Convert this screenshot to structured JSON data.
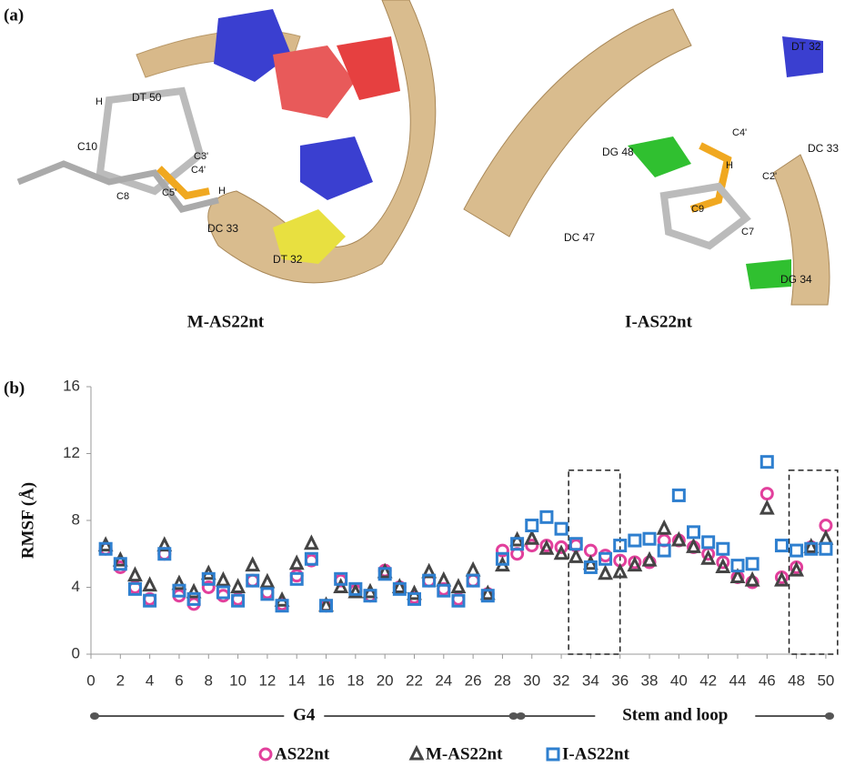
{
  "panel_a": {
    "label": "(a)",
    "images": [
      {
        "caption": "M-AS22nt",
        "labels": [
          "DT 50",
          "H",
          "C10",
          "C8",
          "C3'",
          "C4'",
          "C5'",
          "H",
          "DC 33",
          "DT 32"
        ]
      },
      {
        "caption": "I-AS22nt",
        "labels": [
          "DT 32",
          "C4'",
          "DC 33",
          "DG 48",
          "C2'",
          "DC 47",
          "C9",
          "C7",
          "DG 34",
          "H"
        ]
      }
    ]
  },
  "chart_data": {
    "type": "scatter",
    "label": "(b)",
    "y_label": "RMSF (Å)",
    "x": [
      1,
      2,
      3,
      4,
      5,
      6,
      7,
      8,
      9,
      10,
      11,
      12,
      13,
      14,
      15,
      16,
      17,
      18,
      19,
      20,
      21,
      22,
      23,
      24,
      25,
      26,
      27,
      28,
      29,
      30,
      31,
      32,
      33,
      34,
      35,
      36,
      37,
      38,
      39,
      40,
      41,
      42,
      43,
      44,
      45,
      46,
      47,
      48,
      49,
      50
    ],
    "series": [
      {
        "name": "AS22nt",
        "color": "#e2409c",
        "marker": "circle",
        "values": [
          6.3,
          5.2,
          4.0,
          3.3,
          6.0,
          3.5,
          3.0,
          4.0,
          3.5,
          3.3,
          4.4,
          3.7,
          3.0,
          4.7,
          5.6,
          2.9,
          4.4,
          3.8,
          3.5,
          5.0,
          4.0,
          3.4,
          4.4,
          3.9,
          3.3,
          4.4,
          3.6,
          6.2,
          6.0,
          6.5,
          6.5,
          6.4,
          6.5,
          6.2,
          5.9,
          5.6,
          5.5,
          5.5,
          6.8,
          6.8,
          6.4,
          6.0,
          5.5,
          4.6,
          4.3,
          9.6,
          4.6,
          5.2,
          6.4,
          7.7
        ]
      },
      {
        "name": "M-AS22nt",
        "color": "#444444",
        "marker": "triangle",
        "values": [
          6.5,
          5.6,
          4.7,
          4.1,
          6.5,
          4.2,
          3.7,
          4.8,
          4.4,
          4.0,
          5.3,
          4.3,
          3.2,
          5.4,
          6.6,
          2.9,
          4.0,
          3.7,
          3.7,
          4.9,
          4.0,
          3.6,
          4.9,
          4.4,
          4.0,
          5.0,
          3.6,
          5.3,
          6.8,
          6.9,
          6.3,
          6.0,
          5.8,
          5.4,
          4.8,
          4.9,
          5.3,
          5.6,
          7.5,
          6.8,
          6.4,
          5.7,
          5.2,
          4.6,
          4.4,
          8.7,
          4.4,
          5.0,
          6.4,
          6.9
        ]
      },
      {
        "name": "I-AS22nt",
        "color": "#2e7fcf",
        "marker": "square",
        "values": [
          6.3,
          5.4,
          3.9,
          3.2,
          6.0,
          3.8,
          3.3,
          4.5,
          3.7,
          3.2,
          4.4,
          3.6,
          2.9,
          4.5,
          5.7,
          2.9,
          4.5,
          3.9,
          3.5,
          4.8,
          3.9,
          3.3,
          4.4,
          3.8,
          3.2,
          4.4,
          3.5,
          5.7,
          6.6,
          7.7,
          8.2,
          7.5,
          6.6,
          5.2,
          5.7,
          6.5,
          6.8,
          6.9,
          6.2,
          9.5,
          7.3,
          6.7,
          6.3,
          5.3,
          5.4,
          11.5,
          6.5,
          6.2,
          6.3,
          6.3
        ]
      }
    ],
    "xlim": [
      0,
      50.5
    ],
    "ylim": [
      0,
      16
    ],
    "xticks": [
      0,
      2,
      4,
      6,
      8,
      10,
      12,
      14,
      16,
      18,
      20,
      22,
      24,
      26,
      28,
      30,
      32,
      34,
      36,
      38,
      40,
      42,
      44,
      46,
      48,
      50
    ],
    "yticks": [
      0,
      4,
      8,
      12,
      16
    ],
    "highlights": [
      {
        "x": [
          32.5,
          36
        ],
        "y": [
          0,
          11
        ]
      },
      {
        "x": [
          47.5,
          50.8
        ],
        "y": [
          0,
          11
        ]
      }
    ],
    "groups": [
      {
        "label": "G4",
        "range": [
          0,
          29
        ]
      },
      {
        "label": "Stem and loop",
        "range": [
          29,
          50.5
        ]
      }
    ],
    "legend": "bottom"
  }
}
